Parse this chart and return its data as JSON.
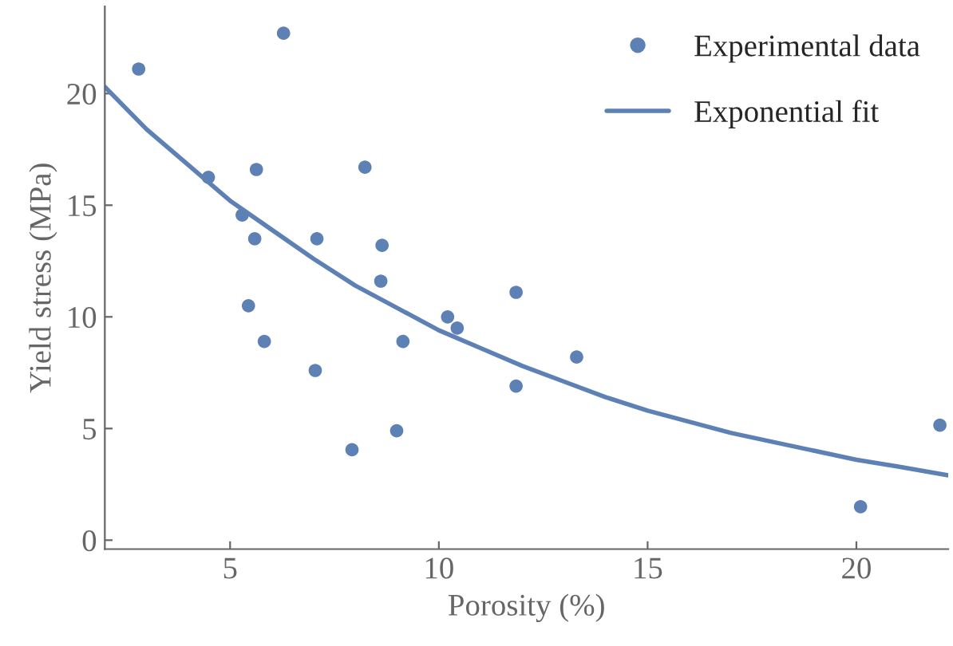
{
  "chart_data": {
    "type": "scatter",
    "xlabel": "Porosity (%)",
    "ylabel": "Yield stress (MPa)",
    "xlim": [
      2,
      22.2
    ],
    "ylim": [
      -0.4,
      23.9
    ],
    "xticks": [
      5,
      10,
      15,
      20
    ],
    "yticks": [
      0,
      5,
      10,
      15,
      20
    ],
    "grid": false,
    "legend": "top right",
    "series": [
      {
        "name": "Experimental data",
        "marker": "circle",
        "color": "#5e81b5",
        "x": [
          2.81,
          4.48,
          5.63,
          5.29,
          5.59,
          5.44,
          5.82,
          6.28,
          7.08,
          7.04,
          8.23,
          8.64,
          8.61,
          7.92,
          8.99,
          9.14,
          10.21,
          10.44,
          11.85,
          11.85,
          13.3,
          20.1,
          22.0
        ],
        "values": [
          21.1,
          16.25,
          16.6,
          14.56,
          13.5,
          10.5,
          8.9,
          22.7,
          13.5,
          7.6,
          16.7,
          13.2,
          11.6,
          4.05,
          4.9,
          8.9,
          10.0,
          9.5,
          11.1,
          6.9,
          8.2,
          1.5,
          5.15
        ]
      },
      {
        "name": "Exponential fit",
        "type": "line",
        "color": "#5e81b5",
        "line_style": "solid",
        "x": [
          2,
          3,
          4,
          5,
          6,
          7,
          8,
          9,
          10,
          11,
          12,
          13,
          14,
          15,
          16,
          17,
          18,
          19,
          20,
          21,
          22.2
        ],
        "values": [
          20.3,
          18.4,
          16.8,
          15.2,
          13.9,
          12.6,
          11.4,
          10.4,
          9.4,
          8.6,
          7.8,
          7.1,
          6.4,
          5.8,
          5.3,
          4.8,
          4.4,
          4.0,
          3.6,
          3.3,
          2.9
        ]
      }
    ]
  }
}
